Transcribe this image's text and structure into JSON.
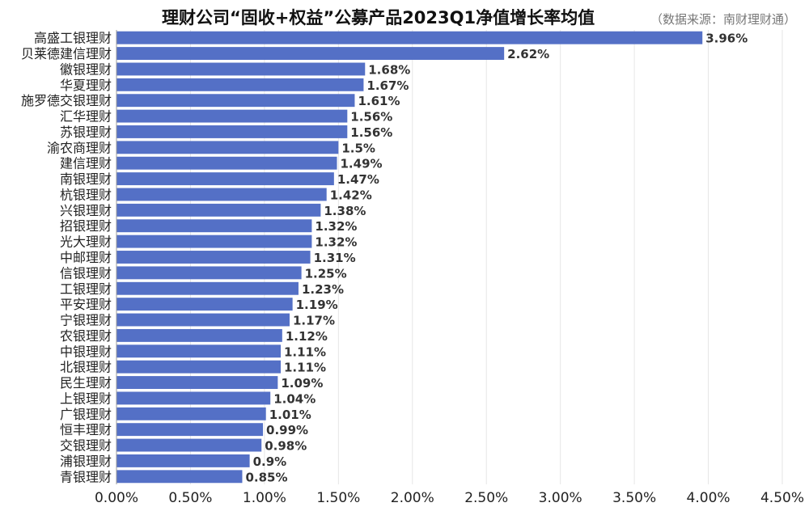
{
  "title": "理财公司“固收+权益”公募产品2023Q1净值增长率均值",
  "source": "（数据来源：南财理财通）",
  "colors": {
    "bar": "#5470C6",
    "grid": "#e6e6e6",
    "axis": "#999999"
  },
  "chart_data": {
    "type": "bar",
    "orientation": "horizontal",
    "title": "理财公司“固收+权益”公募产品2023Q1净值增长率均值",
    "xlabel": "",
    "ylabel": "",
    "xlim": [
      0,
      4.5
    ],
    "x_ticks": [
      "0.00%",
      "0.50%",
      "1.00%",
      "1.50%",
      "2.00%",
      "2.50%",
      "3.00%",
      "3.50%",
      "4.00%",
      "4.50%"
    ],
    "grid": true,
    "categories": [
      "高盛工银理财",
      "贝莱德建信理财",
      "徽银理财",
      "华夏理财",
      "施罗德交银理财",
      "汇华理财",
      "苏银理财",
      "渝农商理财",
      "建信理财",
      "南银理财",
      "杭银理财",
      "兴银理财",
      "招银理财",
      "光大理财",
      "中邮理财",
      "信银理财",
      "工银理财",
      "平安理财",
      "宁银理财",
      "农银理财",
      "中银理财",
      "北银理财",
      "民生理财",
      "上银理财",
      "广银理财",
      "恒丰理财",
      "交银理财",
      "浦银理财",
      "青银理财"
    ],
    "values": [
      3.96,
      2.62,
      1.68,
      1.67,
      1.61,
      1.56,
      1.56,
      1.5,
      1.49,
      1.47,
      1.42,
      1.38,
      1.32,
      1.32,
      1.31,
      1.25,
      1.23,
      1.19,
      1.17,
      1.12,
      1.11,
      1.11,
      1.09,
      1.04,
      1.01,
      0.99,
      0.98,
      0.9,
      0.85
    ],
    "value_labels": [
      "3.96%",
      "2.62%",
      "1.68%",
      "1.67%",
      "1.61%",
      "1.56%",
      "1.56%",
      "1.5%",
      "1.49%",
      "1.47%",
      "1.42%",
      "1.38%",
      "1.32%",
      "1.32%",
      "1.31%",
      "1.25%",
      "1.23%",
      "1.19%",
      "1.17%",
      "1.12%",
      "1.11%",
      "1.11%",
      "1.09%",
      "1.04%",
      "1.01%",
      "0.99%",
      "0.98%",
      "0.9%",
      "0.85%"
    ]
  }
}
